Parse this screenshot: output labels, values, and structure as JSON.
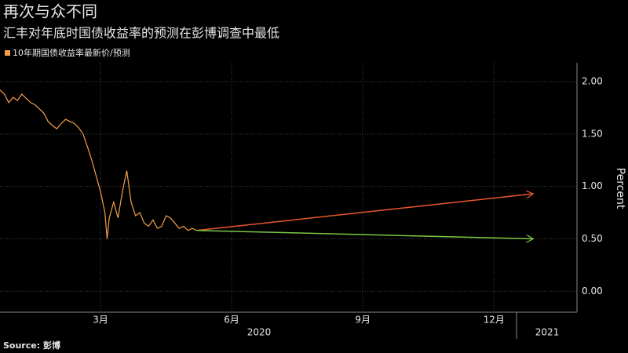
{
  "chart_data": {
    "type": "line",
    "title": "再次与众不同",
    "subtitle": "汇丰对年底时国债收益率的预测在彭博调查中最低",
    "source": "Source: 彭博",
    "y_label": "Percent",
    "years": [
      "2020",
      "2021"
    ],
    "xlim": [
      -0.3,
      12.9
    ],
    "xticks": [
      {
        "value": 2,
        "label": "3月"
      },
      {
        "value": 5,
        "label": "6月"
      },
      {
        "value": 8,
        "label": "9月"
      },
      {
        "value": 11,
        "label": "12月"
      }
    ],
    "ylim": [
      -0.2,
      2.18
    ],
    "yticks": [
      {
        "value": 0,
        "label": "0.00"
      },
      {
        "value": 0.5,
        "label": "0.50"
      },
      {
        "value": 1,
        "label": "1.00"
      },
      {
        "value": 1.5,
        "label": "1.50"
      },
      {
        "value": 2,
        "label": "2.00"
      }
    ],
    "grid": true,
    "legend": "top-left",
    "series": [
      {
        "name": "10年期国债收益率最新价/预测",
        "color": "#f5a04a",
        "x": [
          -0.3,
          -0.2,
          -0.1,
          0.0,
          0.1,
          0.2,
          0.3,
          0.4,
          0.5,
          0.6,
          0.7,
          0.8,
          0.9,
          1.0,
          1.1,
          1.2,
          1.3,
          1.4,
          1.5,
          1.6,
          1.7,
          1.8,
          1.9,
          2.0,
          2.1,
          2.15,
          2.2,
          2.3,
          2.4,
          2.5,
          2.6,
          2.7,
          2.8,
          2.9,
          3.0,
          3.1,
          3.2,
          3.3,
          3.4,
          3.5,
          3.6,
          3.7,
          3.8,
          3.9,
          4.0,
          4.1,
          4.2
        ],
        "values": [
          1.92,
          1.88,
          1.8,
          1.85,
          1.82,
          1.88,
          1.84,
          1.8,
          1.78,
          1.74,
          1.7,
          1.62,
          1.58,
          1.55,
          1.6,
          1.64,
          1.62,
          1.6,
          1.56,
          1.5,
          1.38,
          1.25,
          1.1,
          0.95,
          0.75,
          0.5,
          0.7,
          0.85,
          0.7,
          0.95,
          1.15,
          0.85,
          0.72,
          0.75,
          0.65,
          0.62,
          0.68,
          0.6,
          0.62,
          0.72,
          0.7,
          0.65,
          0.6,
          0.62,
          0.58,
          0.6,
          0.58
        ]
      },
      {
        "color": "#e8582c",
        "x": [
          4.2,
          11.9
        ],
        "values": [
          0.58,
          0.93
        ]
      },
      {
        "color": "#7ac943",
        "x": [
          4.2,
          11.9
        ],
        "values": [
          0.58,
          0.5
        ]
      }
    ]
  }
}
